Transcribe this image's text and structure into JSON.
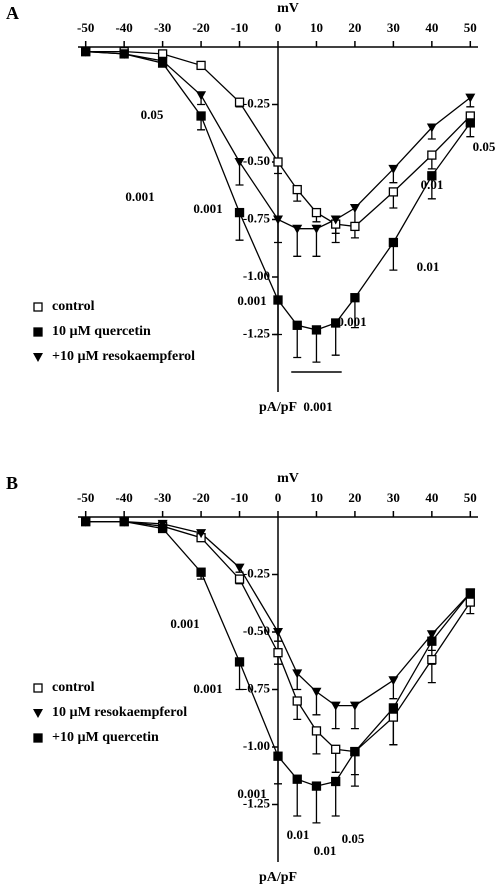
{
  "chart_data": [
    {
      "type": "line",
      "panel": "A",
      "x_label": "mV",
      "y_label": "pA/pF",
      "x": [
        -50,
        -40,
        -30,
        -20,
        -10,
        0,
        5,
        10,
        15,
        20,
        30,
        40,
        50
      ],
      "xlim": [
        -52,
        52
      ],
      "xticks": [
        -50,
        -40,
        -30,
        -20,
        -10,
        0,
        10,
        20,
        30,
        40,
        50
      ],
      "ylim": [
        -1.5,
        0
      ],
      "yticks": [
        -0.25,
        {
          "value": -0.5,
          "label": "-0.50"
        },
        -0.75,
        {
          "value": -1.0,
          "label": "-1.00"
        },
        -1.25
      ],
      "series": [
        {
          "name": "control",
          "color": "#000",
          "marker": "square-open",
          "values": [
            -0.02,
            -0.02,
            -0.03,
            -0.08,
            -0.24,
            -0.5,
            -0.62,
            -0.72,
            -0.77,
            -0.78,
            -0.63,
            -0.47,
            -0.3
          ],
          "errors": [
            0,
            0,
            0,
            0.01,
            0.02,
            0.05,
            0.05,
            0.04,
            0.04,
            0.05,
            0.07,
            0.06,
            0.04
          ]
        },
        {
          "name": "10 µM quercetin",
          "color": "#000",
          "marker": "square",
          "values": [
            -0.02,
            -0.03,
            -0.07,
            -0.3,
            -0.72,
            -1.1,
            -1.21,
            -1.23,
            -1.2,
            -1.09,
            -0.85,
            -0.56,
            -0.33
          ],
          "errors": [
            0,
            0,
            0.01,
            0.06,
            0.12,
            0.15,
            0.14,
            0.14,
            0.14,
            0.13,
            0.12,
            0.1,
            0.06
          ]
        },
        {
          "name": "+10 µM resokaempferol",
          "color": "#000",
          "marker": "triangle",
          "values": [
            -0.02,
            -0.03,
            -0.06,
            -0.21,
            -0.5,
            -0.75,
            -0.79,
            -0.79,
            -0.75,
            -0.7,
            -0.53,
            -0.35,
            -0.22
          ],
          "errors": [
            0,
            0,
            0,
            0.04,
            0.1,
            0.1,
            0.12,
            0.12,
            0.1,
            0.08,
            0.06,
            0.05,
            0.04
          ]
        }
      ],
      "annotations": [
        "0.05",
        "0.001",
        "0.001",
        "0.001",
        "0.001",
        "0.001",
        "0.01",
        "0.01",
        "0.05"
      ]
    },
    {
      "type": "line",
      "panel": "B",
      "x_label": "mV",
      "y_label": "pA/pF",
      "x": [
        -50,
        -40,
        -30,
        -20,
        -10,
        0,
        5,
        10,
        15,
        20,
        30,
        40,
        50
      ],
      "xlim": [
        -52,
        52
      ],
      "xticks": [
        -50,
        -40,
        -30,
        -20,
        -10,
        0,
        10,
        20,
        30,
        40,
        50
      ],
      "ylim": [
        -1.5,
        0
      ],
      "yticks": [
        -0.25,
        {
          "value": -0.5,
          "label": "-0.50"
        },
        -0.75,
        {
          "value": -1.0,
          "label": "-1.00"
        },
        -1.25
      ],
      "series": [
        {
          "name": "control",
          "color": "#000",
          "marker": "square-open",
          "values": [
            -0.02,
            -0.02,
            -0.04,
            -0.09,
            -0.27,
            -0.59,
            -0.8,
            -0.93,
            -1.01,
            -1.02,
            -0.87,
            -0.62,
            -0.37
          ],
          "errors": [
            0,
            0,
            0,
            0.01,
            0.02,
            0.05,
            0.08,
            0.1,
            0.1,
            0.1,
            0.12,
            0.1,
            0.05
          ]
        },
        {
          "name": "10 µM resokaempferol",
          "color": "#000",
          "marker": "triangle",
          "values": [
            -0.02,
            -0.02,
            -0.03,
            -0.07,
            -0.22,
            -0.5,
            -0.68,
            -0.76,
            -0.82,
            -0.82,
            -0.71,
            -0.51,
            -0.33
          ],
          "errors": [
            0,
            0,
            0,
            0.01,
            0.02,
            0.04,
            0.07,
            0.1,
            0.1,
            0.1,
            0.08,
            0.07,
            0.04
          ]
        },
        {
          "name": "+10 µM quercetin",
          "color": "#000",
          "marker": "square",
          "values": [
            -0.02,
            -0.02,
            -0.05,
            -0.24,
            -0.63,
            -1.04,
            -1.14,
            -1.17,
            -1.15,
            -1.02,
            -0.83,
            -0.54,
            -0.33
          ],
          "errors": [
            0,
            0,
            0.01,
            0.03,
            0.12,
            0.12,
            0.16,
            0.16,
            0.15,
            0.15,
            0.16,
            0.1,
            0.05
          ]
        }
      ],
      "annotations": [
        "0.001",
        "0.001",
        "0.001",
        "0.01",
        "0.01",
        "0.05"
      ]
    }
  ]
}
